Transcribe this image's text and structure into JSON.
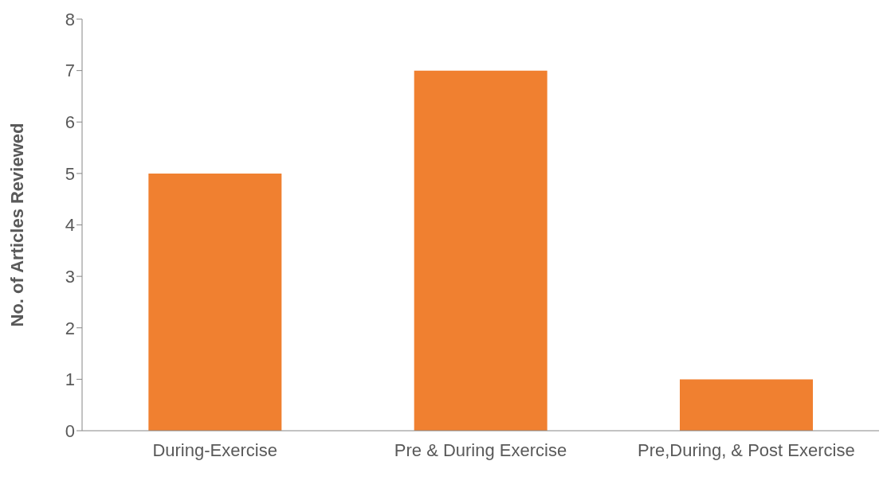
{
  "chart_data": {
    "type": "bar",
    "ylabel": "No. of Articles Reviewed",
    "categories": [
      "During-Exercise",
      "Pre & During Exercise",
      "Pre,During, & Post Exercise"
    ],
    "values": [
      5,
      7,
      1
    ],
    "color": "#f08030",
    "ylim": [
      0,
      8
    ],
    "yticks": [
      0,
      1,
      2,
      3,
      4,
      5,
      6,
      7,
      8
    ],
    "grid": false,
    "legend": false
  }
}
